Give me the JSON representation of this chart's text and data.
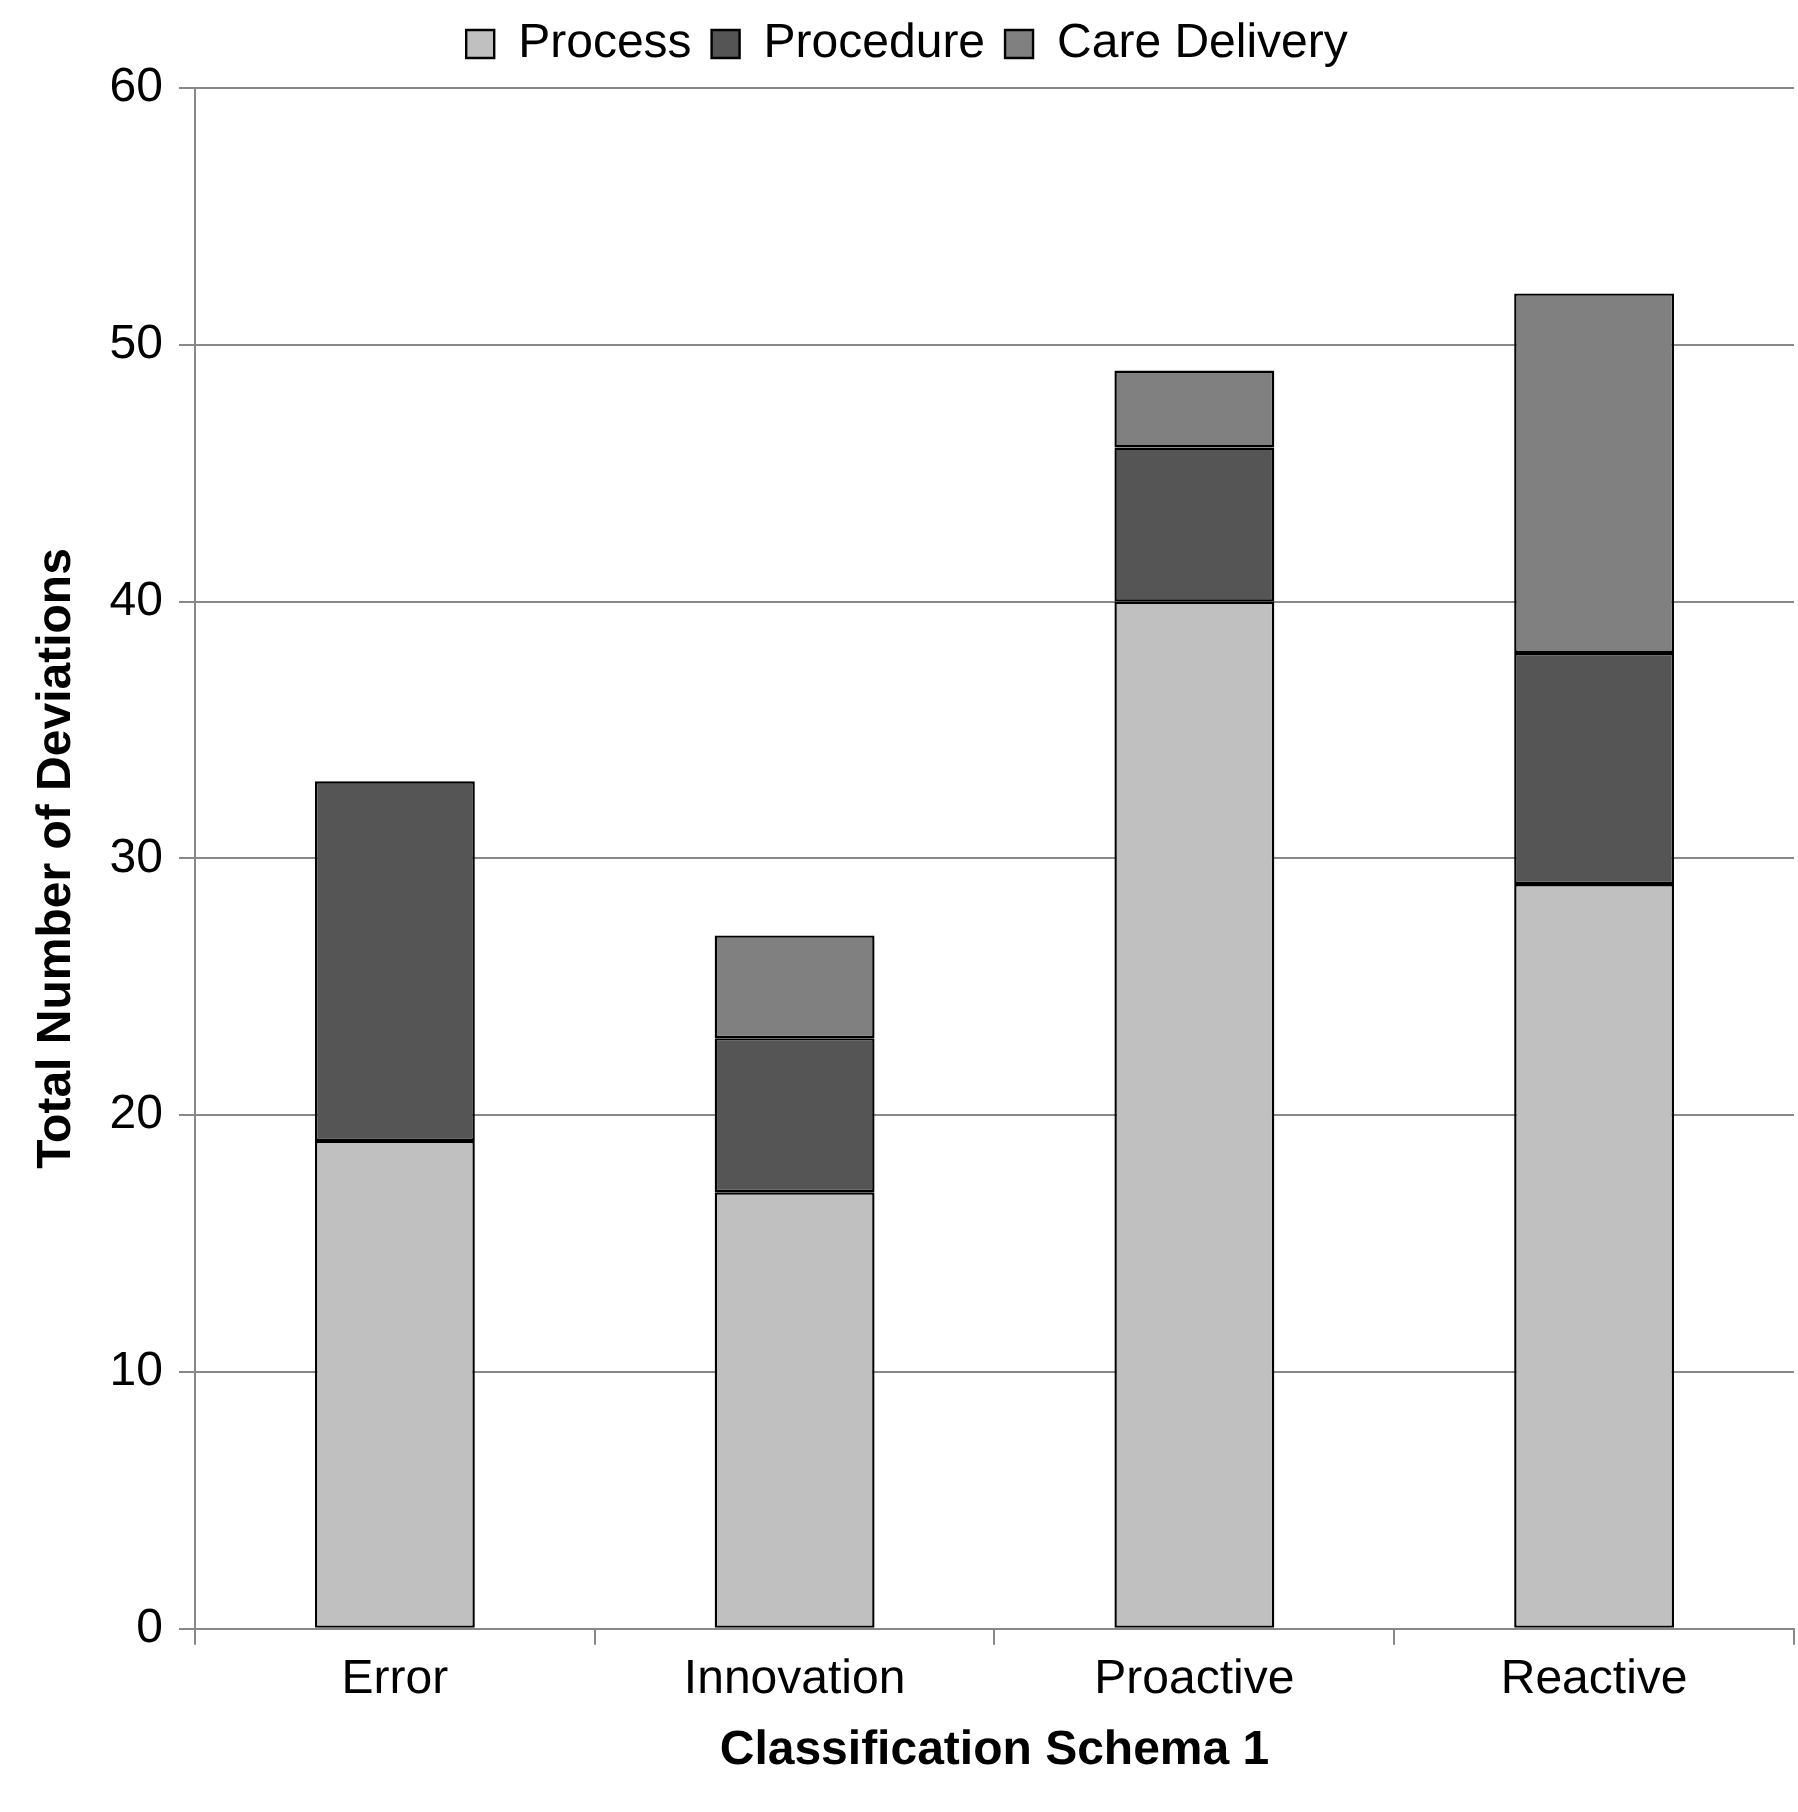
{
  "chart_data": {
    "type": "bar",
    "stacked": true,
    "xlabel": "Classification Schema 1",
    "ylabel": "Total Number of Deviations",
    "categories": [
      "Error",
      "Innovation",
      "Proactive",
      "Reactive"
    ],
    "series": [
      {
        "name": "Process",
        "color": "#c0c0c0",
        "values": [
          19,
          17,
          40,
          29
        ]
      },
      {
        "name": "Procedure",
        "color": "#555555",
        "values": [
          14,
          6,
          6,
          9
        ]
      },
      {
        "name": "Care Delivery",
        "color": "#808080",
        "values": [
          0,
          4,
          3,
          14
        ]
      }
    ],
    "ylim": [
      0,
      60
    ],
    "yticks": [
      0,
      10,
      20,
      30,
      40,
      50,
      60
    ],
    "grid": "y",
    "legend": "top"
  }
}
